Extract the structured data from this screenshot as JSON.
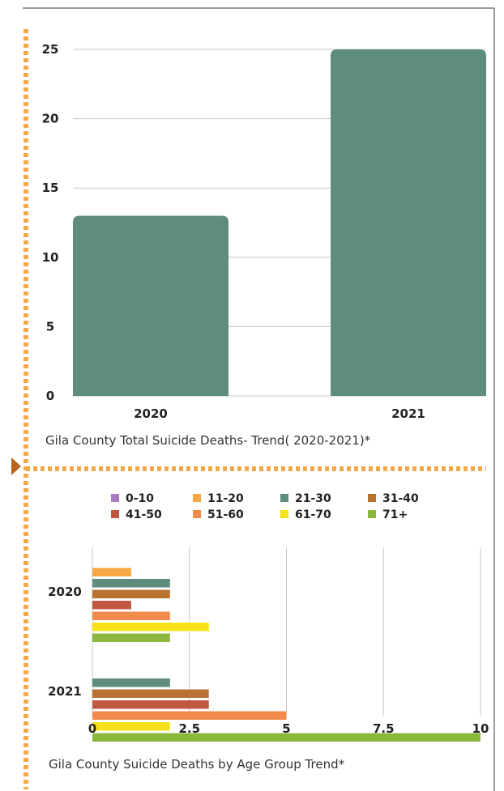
{
  "colors": {
    "accent_dots": "#f2a94a",
    "border": "#7a7a7a",
    "arrow": "#b5651d",
    "grid": "#c8c8c8",
    "bar_total": "#5e8c7f"
  },
  "chart_data": [
    {
      "type": "bar",
      "orientation": "vertical",
      "categories": [
        "2020",
        "2021"
      ],
      "values": [
        13,
        25
      ],
      "ylim": [
        0,
        25
      ],
      "yticks": [
        "0",
        "5",
        "10",
        "15",
        "20",
        "25"
      ],
      "grid": true,
      "title": "Gila County Total Suicide Deaths- Trend( 2020-2021)*",
      "xlabel": "",
      "ylabel": ""
    },
    {
      "type": "bar",
      "orientation": "horizontal",
      "categories": [
        "2020",
        "2021"
      ],
      "series": [
        {
          "name": "0-10",
          "color": "#a97bc4",
          "values": [
            0,
            0
          ]
        },
        {
          "name": "11-20",
          "color": "#f7a843",
          "values": [
            1,
            0
          ]
        },
        {
          "name": "21-30",
          "color": "#5e8c7f",
          "values": [
            2,
            2
          ]
        },
        {
          "name": "31-40",
          "color": "#b87333",
          "values": [
            2,
            3
          ]
        },
        {
          "name": "41-50",
          "color": "#c0573f",
          "values": [
            1,
            3
          ]
        },
        {
          "name": "51-60",
          "color": "#f08b4b",
          "values": [
            2,
            5
          ]
        },
        {
          "name": "61-70",
          "color": "#f7e21a",
          "values": [
            3,
            2
          ]
        },
        {
          "name": "71+",
          "color": "#8ab83d",
          "values": [
            2,
            10
          ]
        }
      ],
      "xlim": [
        0,
        10
      ],
      "xticks": [
        "0",
        "2.5",
        "5",
        "7.5",
        "10"
      ],
      "legend": "top",
      "grid": true,
      "title": "Gila County Suicide Deaths by Age Group Trend*",
      "xlabel": "",
      "ylabel": ""
    }
  ]
}
